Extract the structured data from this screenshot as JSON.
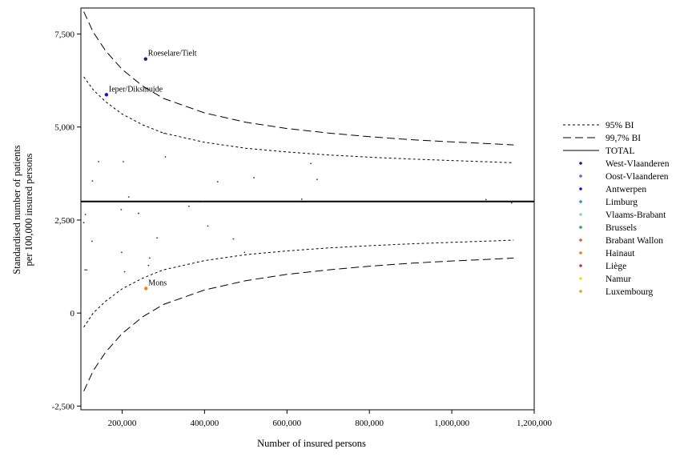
{
  "chart_data": {
    "type": "scatter",
    "title": "",
    "xlabel": "Number of insured persons",
    "ylabel": "Standardised number of patients\nper 100,000 insured persons",
    "xlim": [
      100000,
      1200000
    ],
    "ylim": [
      -2600,
      8200
    ],
    "x_ticks": [
      200000,
      400000,
      600000,
      800000,
      1000000,
      1200000
    ],
    "x_tick_labels": [
      "200,000",
      "400,000",
      "600,000",
      "800,000",
      "1,000,000",
      "1,200,000"
    ],
    "y_ticks": [
      -2500,
      0,
      2500,
      5000,
      7500
    ],
    "y_tick_labels": [
      "-2,500",
      "0",
      "2,500",
      "5,000",
      "7,500"
    ],
    "grid": false,
    "legend_position": "right",
    "total": 3000,
    "lines": [
      {
        "name": "95% BI",
        "style": "dotted",
        "kind": "upper",
        "z": 1.96
      },
      {
        "name": "99,7% BI",
        "style": "dashed",
        "kind": "upper",
        "z": 3.0
      },
      {
        "name": "TOTAL",
        "style": "solid",
        "kind": "total"
      }
    ],
    "ci_curve_x": [
      107000,
      130000,
      160000,
      200000,
      250000,
      300000,
      400000,
      500000,
      600000,
      700000,
      800000,
      900000,
      1000000,
      1100000,
      1150000
    ],
    "ci_curves": {
      "upper_95": [
        6350,
        6000,
        5680,
        5350,
        5060,
        4840,
        4590,
        4430,
        4330,
        4250,
        4190,
        4140,
        4100,
        4060,
        4040
      ],
      "lower_95": [
        -380,
        0,
        320,
        650,
        940,
        1160,
        1410,
        1570,
        1670,
        1750,
        1810,
        1860,
        1900,
        1940,
        1960
      ],
      "upper_997": [
        8100,
        7550,
        7050,
        6550,
        6100,
        5770,
        5380,
        5130,
        4960,
        4840,
        4740,
        4660,
        4600,
        4550,
        4520
      ],
      "lower_997": [
        -2100,
        -1550,
        -1050,
        -550,
        -100,
        230,
        620,
        870,
        1040,
        1160,
        1260,
        1340,
        1400,
        1450,
        1480
      ]
    },
    "categories": [
      "West-Vlaanderen",
      "Oost-Vlaanderen",
      "Antwerpen",
      "Limburg",
      "Vlaams-Brabant",
      "Brussels",
      "Brabant Wallon",
      "Hainaut",
      "Liège",
      "Namur",
      "Luxembourg"
    ],
    "category_colors": [
      "#1a1a80",
      "#4a6fd0",
      "#1010e0",
      "#2a8fd8",
      "#8ccbe8",
      "#20b040",
      "#d06040",
      "#f08020",
      "#b04030",
      "#f0e000",
      "#e0a020"
    ],
    "points": [
      {
        "x": 257000,
        "y": 6830,
        "cat": "West-Vlaanderen",
        "size": 2,
        "label": "Roeselare/Tielt"
      },
      {
        "x": 162000,
        "y": 5870,
        "cat": "Antwerpen",
        "size": 2,
        "label": "Ieper/Diksmuide"
      },
      {
        "x": 258000,
        "y": 660,
        "cat": "Hainaut",
        "size": 2,
        "label": "Mons"
      },
      {
        "x": 143000,
        "y": 4070,
        "cat": "West-Vlaanderen",
        "size": 1
      },
      {
        "x": 203000,
        "y": 4070,
        "cat": "Oost-Vlaanderen",
        "size": 1
      },
      {
        "x": 305000,
        "y": 4200,
        "cat": "Antwerpen",
        "size": 1
      },
      {
        "x": 302000,
        "y": 4830,
        "cat": "Limburg",
        "size": 1
      },
      {
        "x": 128000,
        "y": 3550,
        "cat": "Vlaams-Brabant",
        "size": 1
      },
      {
        "x": 216000,
        "y": 3120,
        "cat": "Brussels",
        "size": 1
      },
      {
        "x": 432000,
        "y": 3530,
        "cat": "Brabant Wallon",
        "size": 1
      },
      {
        "x": 520000,
        "y": 3640,
        "cat": "Hainaut",
        "size": 1
      },
      {
        "x": 658000,
        "y": 4020,
        "cat": "Liège",
        "size": 1
      },
      {
        "x": 673000,
        "y": 3590,
        "cat": "Namur",
        "size": 1
      },
      {
        "x": 636000,
        "y": 3060,
        "cat": "Luxembourg",
        "size": 1
      },
      {
        "x": 1083000,
        "y": 3050,
        "cat": "Oost-Vlaanderen",
        "size": 1
      },
      {
        "x": 1145000,
        "y": 2960,
        "cat": "Antwerpen",
        "size": 1
      },
      {
        "x": 395000,
        "y": 2990,
        "cat": "West-Vlaanderen",
        "size": 1
      },
      {
        "x": 362000,
        "y": 2870,
        "cat": "Liège",
        "size": 1
      },
      {
        "x": 111000,
        "y": 2650,
        "cat": "Hainaut",
        "size": 1
      },
      {
        "x": 107000,
        "y": 2430,
        "cat": "Namur",
        "size": 1
      },
      {
        "x": 198000,
        "y": 2780,
        "cat": "Brabant Wallon",
        "size": 1
      },
      {
        "x": 240000,
        "y": 2680,
        "cat": "Hainaut",
        "size": 1
      },
      {
        "x": 408000,
        "y": 2340,
        "cat": "Namur",
        "size": 1
      },
      {
        "x": 127000,
        "y": 1930,
        "cat": "Limburg",
        "size": 1
      },
      {
        "x": 285000,
        "y": 2020,
        "cat": "Hainaut",
        "size": 1
      },
      {
        "x": 470000,
        "y": 1990,
        "cat": "Liège",
        "size": 1
      },
      {
        "x": 199000,
        "y": 1630,
        "cat": "Luxembourg",
        "size": 1
      },
      {
        "x": 497000,
        "y": 1630,
        "cat": "Liège",
        "size": 1
      },
      {
        "x": 267000,
        "y": 1480,
        "cat": "Hainaut",
        "size": 1
      },
      {
        "x": 264000,
        "y": 1280,
        "cat": "Namur",
        "size": 1
      },
      {
        "x": 110000,
        "y": 1160,
        "cat": "Luxembourg",
        "size": 1
      },
      {
        "x": 114000,
        "y": 1160,
        "cat": "Luxembourg",
        "size": 1
      },
      {
        "x": 206000,
        "y": 1110,
        "cat": "Hainaut",
        "size": 1
      }
    ]
  }
}
